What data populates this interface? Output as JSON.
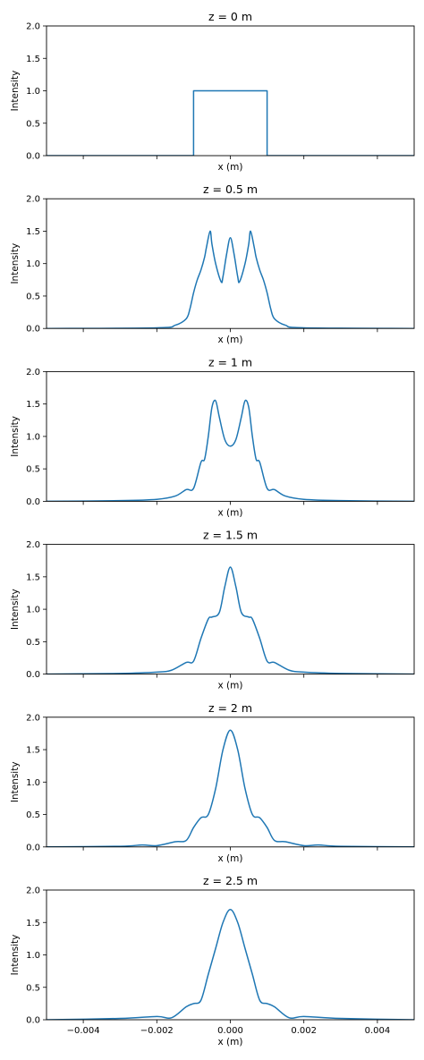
{
  "chart_data": [
    {
      "type": "line",
      "title": "z = 0 m",
      "xlabel": "x (m)",
      "ylabel": "Intensity",
      "xlim": [
        -0.005,
        0.005
      ],
      "ylim": [
        0,
        2.0
      ],
      "yticks": [
        "0.0",
        "0.5",
        "1.0",
        "1.5",
        "2.0"
      ],
      "xtick_labels": [],
      "series": [
        {
          "color": "#1f77b4",
          "kind": "rect",
          "halfwidth": 0.001,
          "height": 1.0
        }
      ]
    },
    {
      "type": "line",
      "title": "z = 0.5 m",
      "xlabel": "x (m)",
      "ylabel": "Intensity",
      "xlim": [
        -0.005,
        0.005
      ],
      "ylim": [
        0,
        2.0
      ],
      "yticks": [
        "0.0",
        "0.5",
        "1.0",
        "1.5",
        "2.0"
      ],
      "xtick_labels": [],
      "series": [
        {
          "color": "#1f77b4",
          "x": [
            -0.005,
            -0.002,
            -0.0015,
            -0.0012,
            -0.0011,
            -0.001,
            -0.0009,
            -0.0008,
            -0.0007,
            -0.00065,
            -0.00055,
            -0.0005,
            -0.0004,
            -0.00025,
            -0.0002,
            -0.0001,
            0.0,
            0.0001,
            0.0002,
            0.00025,
            0.0004,
            0.0005,
            0.00055,
            0.00065,
            0.0007,
            0.0008,
            0.0009,
            0.001,
            0.0011,
            0.0012,
            0.0015,
            0.002,
            0.005
          ],
          "y": [
            0.0,
            0.01,
            0.05,
            0.15,
            0.3,
            0.55,
            0.75,
            0.9,
            1.1,
            1.25,
            1.5,
            1.3,
            1.0,
            0.72,
            0.8,
            1.15,
            1.4,
            1.15,
            0.8,
            0.72,
            1.0,
            1.3,
            1.5,
            1.25,
            1.1,
            0.9,
            0.75,
            0.55,
            0.3,
            0.15,
            0.05,
            0.01,
            0.0
          ]
        }
      ]
    },
    {
      "type": "line",
      "title": "z = 1 m",
      "xlabel": "x (m)",
      "ylabel": "Intensity",
      "xlim": [
        -0.005,
        0.005
      ],
      "ylim": [
        0,
        2.0
      ],
      "yticks": [
        "0.0",
        "0.5",
        "1.0",
        "1.5",
        "2.0"
      ],
      "xtick_labels": [],
      "series": [
        {
          "color": "#1f77b4",
          "x": [
            -0.005,
            -0.003,
            -0.002,
            -0.0015,
            -0.0012,
            -0.001,
            -0.0008,
            -0.0007,
            -0.0006,
            -0.0005,
            -0.0004,
            -0.0003,
            -0.00015,
            0.0,
            0.00015,
            0.0003,
            0.0004,
            0.0005,
            0.0006,
            0.0007,
            0.0008,
            0.001,
            0.0012,
            0.0015,
            0.002,
            0.003,
            0.005
          ],
          "y": [
            0.0,
            0.01,
            0.03,
            0.08,
            0.18,
            0.2,
            0.6,
            0.65,
            1.0,
            1.45,
            1.55,
            1.3,
            0.95,
            0.85,
            0.95,
            1.3,
            1.55,
            1.45,
            1.0,
            0.65,
            0.6,
            0.2,
            0.18,
            0.08,
            0.03,
            0.01,
            0.0
          ]
        }
      ]
    },
    {
      "type": "line",
      "title": "z = 1.5 m",
      "xlabel": "x (m)",
      "ylabel": "Intensity",
      "xlim": [
        -0.005,
        0.005
      ],
      "ylim": [
        0,
        2.0
      ],
      "yticks": [
        "0.0",
        "0.5",
        "1.0",
        "1.5",
        "2.0"
      ],
      "xtick_labels": [],
      "series": [
        {
          "color": "#1f77b4",
          "x": [
            -0.005,
            -0.003,
            -0.002,
            -0.0016,
            -0.0012,
            -0.001,
            -0.0008,
            -0.0006,
            -0.0005,
            -0.0003,
            -0.00015,
            0.0,
            0.00015,
            0.0003,
            0.0005,
            0.0006,
            0.0008,
            0.001,
            0.0012,
            0.0016,
            0.002,
            0.003,
            0.005
          ],
          "y": [
            0.0,
            0.01,
            0.03,
            0.06,
            0.18,
            0.2,
            0.55,
            0.85,
            0.88,
            0.95,
            1.35,
            1.65,
            1.35,
            0.95,
            0.88,
            0.85,
            0.55,
            0.2,
            0.18,
            0.06,
            0.03,
            0.01,
            0.0
          ]
        }
      ]
    },
    {
      "type": "line",
      "title": "z = 2 m",
      "xlabel": "x (m)",
      "ylabel": "Intensity",
      "xlim": [
        -0.005,
        0.005
      ],
      "ylim": [
        0,
        2.0
      ],
      "yticks": [
        "0.0",
        "0.5",
        "1.0",
        "1.5",
        "2.0"
      ],
      "xtick_labels": [],
      "series": [
        {
          "color": "#1f77b4",
          "x": [
            -0.005,
            -0.003,
            -0.0024,
            -0.002,
            -0.0015,
            -0.0012,
            -0.001,
            -0.0008,
            -0.0006,
            -0.0004,
            -0.0002,
            0.0,
            0.0002,
            0.0004,
            0.0006,
            0.0008,
            0.001,
            0.0012,
            0.0015,
            0.002,
            0.0024,
            0.003,
            0.005
          ],
          "y": [
            0.0,
            0.01,
            0.03,
            0.02,
            0.08,
            0.1,
            0.3,
            0.45,
            0.5,
            0.9,
            1.5,
            1.8,
            1.5,
            0.9,
            0.5,
            0.45,
            0.3,
            0.1,
            0.08,
            0.02,
            0.03,
            0.01,
            0.0
          ]
        }
      ]
    },
    {
      "type": "line",
      "title": "z = 2.5 m",
      "xlabel": "x (m)",
      "ylabel": "Intensity",
      "xlim": [
        -0.005,
        0.005
      ],
      "ylim": [
        0,
        2.0
      ],
      "yticks": [
        "0.0",
        "0.5",
        "1.0",
        "1.5",
        "2.0"
      ],
      "xtick_labels": [
        "−0.004",
        "−0.002",
        "0.000",
        "0.002",
        "0.004"
      ],
      "series": [
        {
          "color": "#1f77b4",
          "x": [
            -0.005,
            -0.003,
            -0.002,
            -0.0016,
            -0.0012,
            -0.001,
            -0.0008,
            -0.0006,
            -0.0004,
            -0.0002,
            0.0,
            0.0002,
            0.0004,
            0.0006,
            0.0008,
            0.001,
            0.0012,
            0.0016,
            0.002,
            0.003,
            0.005
          ],
          "y": [
            0.0,
            0.02,
            0.05,
            0.03,
            0.2,
            0.25,
            0.3,
            0.7,
            1.1,
            1.5,
            1.7,
            1.5,
            1.1,
            0.7,
            0.3,
            0.25,
            0.2,
            0.03,
            0.05,
            0.02,
            0.0
          ]
        }
      ]
    }
  ]
}
